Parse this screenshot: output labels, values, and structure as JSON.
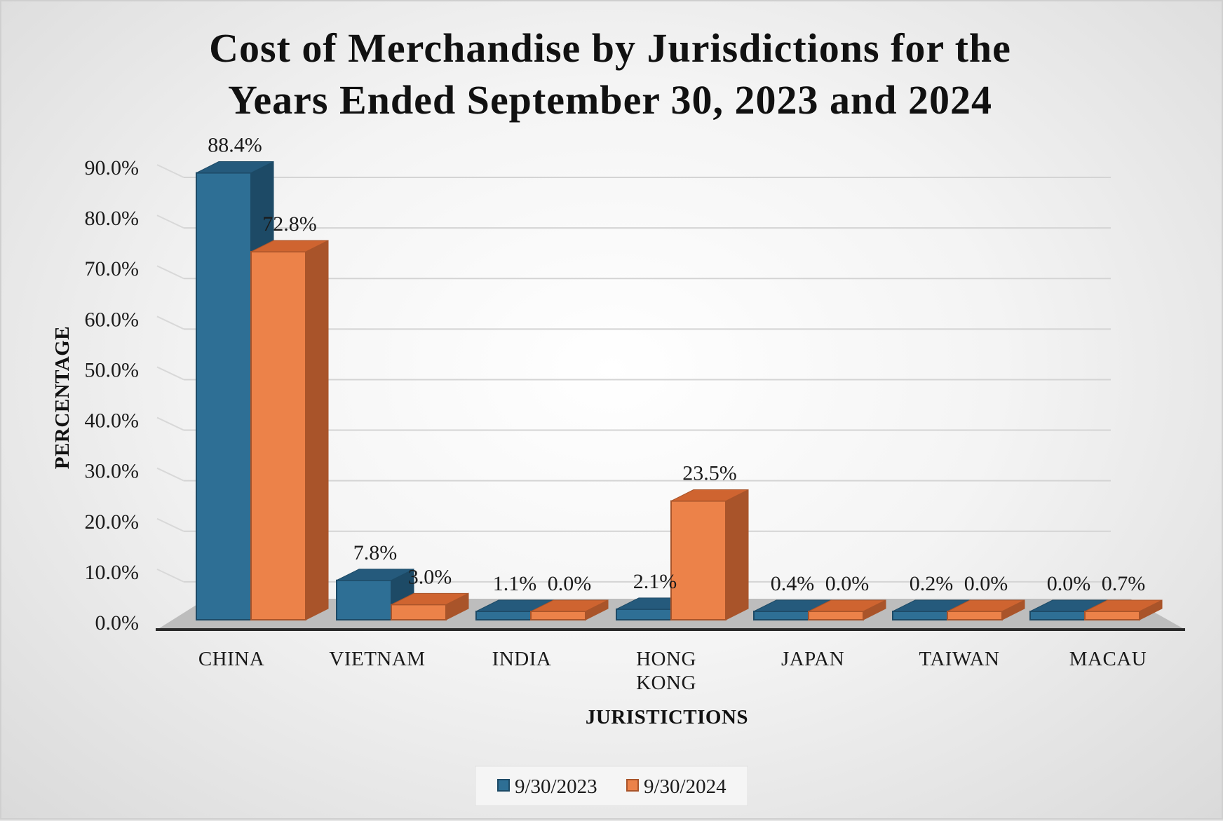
{
  "chart_data": {
    "type": "bar",
    "title_lines": [
      "Cost of Merchandise by Jurisdictions for the",
      "Years Ended September 30, 2023 and 2024"
    ],
    "xlabel": "JURISTICTIONS",
    "ylabel": "PERCENTAGE",
    "ylim": [
      0,
      90
    ],
    "y_ticks": [
      0,
      10,
      20,
      30,
      40,
      50,
      60,
      70,
      80,
      90
    ],
    "y_tick_labels": [
      "0.0%",
      "10.0%",
      "20.0%",
      "30.0%",
      "40.0%",
      "50.0%",
      "60.0%",
      "70.0%",
      "80.0%",
      "90.0%"
    ],
    "categories": [
      {
        "lines": [
          "CHINA"
        ]
      },
      {
        "lines": [
          "VIETNAM"
        ]
      },
      {
        "lines": [
          "INDIA"
        ]
      },
      {
        "lines": [
          "HONG",
          "KONG"
        ]
      },
      {
        "lines": [
          "JAPAN"
        ]
      },
      {
        "lines": [
          "TAIWAN"
        ]
      },
      {
        "lines": [
          "MACAU"
        ]
      }
    ],
    "series": [
      {
        "name": "9/30/2023",
        "values": [
          88.4,
          7.8,
          1.1,
          2.1,
          0.4,
          0.2,
          0.0
        ],
        "labels": [
          "88.4%",
          "7.8%",
          "1.1%",
          "2.1%",
          "0.4%",
          "0.2%",
          "0.0%"
        ],
        "color": "#2e6f95",
        "side_color": "#1d4a66",
        "top_color": "#255a7c"
      },
      {
        "name": "9/30/2024",
        "values": [
          72.8,
          3.0,
          0.0,
          23.5,
          0.0,
          0.0,
          0.7
        ],
        "labels": [
          "72.8%",
          "3.0%",
          "0.0%",
          "23.5%",
          "0.0%",
          "0.0%",
          "0.7%"
        ],
        "color": "#ec8249",
        "side_color": "#a9542a",
        "top_color": "#cf6430"
      }
    ],
    "style": "3d-clustered-column",
    "grid": true,
    "legend_position": "bottom"
  }
}
